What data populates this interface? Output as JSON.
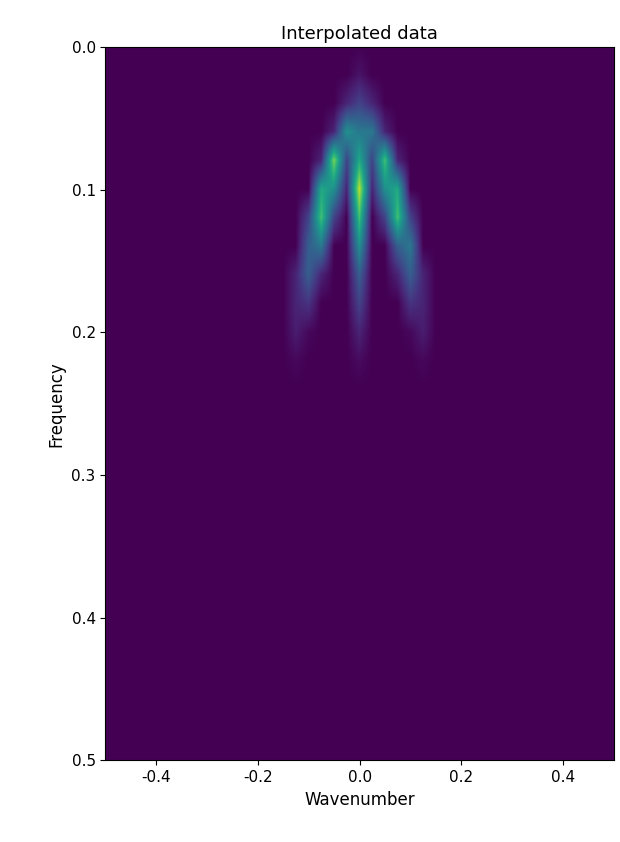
{
  "chart_data": {
    "type": "heatmap",
    "title": "Interpolated data",
    "x_label": "Wavenumber",
    "y_label": "Frequency",
    "x": [
      -0.5,
      -0.475,
      -0.45,
      -0.425,
      -0.4,
      -0.375,
      -0.35,
      -0.325,
      -0.3,
      -0.275,
      -0.25,
      -0.225,
      -0.2,
      -0.175,
      -0.15,
      -0.125,
      -0.1,
      -0.075,
      -0.05,
      -0.025,
      0,
      0.025,
      0.05,
      0.075,
      0.1,
      0.125,
      0.15,
      0.175,
      0.2,
      0.225,
      0.25,
      0.275,
      0.3,
      0.325,
      0.35,
      0.375,
      0.4,
      0.425,
      0.45,
      0.475,
      0.5
    ],
    "y": [
      0,
      0.02,
      0.04,
      0.06,
      0.08,
      0.1,
      0.12,
      0.14,
      0.16,
      0.18,
      0.2,
      0.22,
      0.24,
      0.26,
      0.28,
      0.3,
      0.32,
      0.34,
      0.36,
      0.38,
      0.4,
      0.42,
      0.44,
      0.46,
      0.48,
      0.5
    ],
    "cells": [
      [
        0,
        0,
        0,
        0,
        0,
        0,
        0,
        0,
        0,
        0,
        0,
        0,
        0,
        0,
        0,
        0,
        0,
        0,
        0,
        0,
        0,
        0,
        0,
        0,
        0,
        0,
        0,
        0,
        0,
        0,
        0,
        0,
        0,
        0,
        0,
        0,
        0,
        0,
        0,
        0,
        0
      ],
      [
        0,
        0,
        0,
        0,
        0,
        0,
        0,
        0,
        0,
        0,
        0,
        0,
        0,
        0,
        0,
        0,
        0,
        0,
        0,
        0,
        0.05,
        0,
        0,
        0,
        0,
        0,
        0,
        0,
        0,
        0,
        0,
        0,
        0,
        0,
        0,
        0,
        0,
        0,
        0,
        0,
        0
      ],
      [
        0,
        0,
        0,
        0,
        0,
        0,
        0,
        0,
        0,
        0,
        0,
        0,
        0,
        0,
        0,
        0,
        0,
        0,
        0,
        0.1,
        0.2,
        0.1,
        0,
        0,
        0,
        0,
        0,
        0,
        0,
        0,
        0,
        0,
        0,
        0,
        0,
        0,
        0,
        0,
        0,
        0,
        0
      ],
      [
        0,
        0,
        0,
        0,
        0,
        0,
        0,
        0,
        0,
        0,
        0,
        0,
        0,
        0,
        0,
        0,
        0,
        0,
        0.1,
        0.5,
        0.4,
        0.4,
        0.1,
        0,
        0,
        0,
        0,
        0,
        0,
        0,
        0,
        0,
        0,
        0,
        0,
        0,
        0,
        0,
        0,
        0,
        0
      ],
      [
        0,
        0,
        0,
        0,
        0,
        0,
        0,
        0,
        0,
        0,
        0,
        0,
        0,
        0,
        0,
        0,
        0,
        0.1,
        0.8,
        0.2,
        0.6,
        0.2,
        0.7,
        0.1,
        0,
        0,
        0,
        0,
        0,
        0,
        0,
        0,
        0,
        0,
        0,
        0,
        0,
        0,
        0,
        0,
        0
      ],
      [
        0,
        0,
        0,
        0,
        0,
        0,
        0,
        0,
        0,
        0,
        0,
        0,
        0,
        0,
        0,
        0,
        0,
        0.6,
        0.5,
        0.1,
        0.9,
        0.1,
        0.5,
        0.6,
        0,
        0,
        0,
        0,
        0,
        0,
        0,
        0,
        0,
        0,
        0,
        0,
        0,
        0,
        0,
        0,
        0
      ],
      [
        0,
        0,
        0,
        0,
        0,
        0,
        0,
        0,
        0,
        0,
        0,
        0,
        0,
        0,
        0,
        0,
        0.2,
        0.7,
        0.2,
        0,
        0.7,
        0,
        0.2,
        0.7,
        0.2,
        0,
        0,
        0,
        0,
        0,
        0,
        0,
        0,
        0,
        0,
        0,
        0,
        0,
        0,
        0,
        0
      ],
      [
        0,
        0,
        0,
        0,
        0,
        0,
        0,
        0,
        0,
        0,
        0,
        0,
        0,
        0,
        0,
        0,
        0.3,
        0.4,
        0,
        0,
        0.5,
        0,
        0,
        0.3,
        0.4,
        0,
        0,
        0,
        0,
        0,
        0,
        0,
        0,
        0,
        0,
        0,
        0,
        0,
        0,
        0,
        0
      ],
      [
        0,
        0,
        0,
        0,
        0,
        0,
        0,
        0,
        0,
        0,
        0,
        0,
        0,
        0,
        0,
        0.1,
        0.3,
        0.1,
        0,
        0,
        0.3,
        0,
        0,
        0.1,
        0.3,
        0.1,
        0,
        0,
        0,
        0,
        0,
        0,
        0,
        0,
        0,
        0,
        0,
        0,
        0,
        0,
        0
      ],
      [
        0,
        0,
        0,
        0,
        0,
        0,
        0,
        0,
        0,
        0,
        0,
        0,
        0,
        0,
        0,
        0.1,
        0.15,
        0,
        0,
        0,
        0.2,
        0,
        0,
        0,
        0.15,
        0.1,
        0,
        0,
        0,
        0,
        0,
        0,
        0,
        0,
        0,
        0,
        0,
        0,
        0,
        0,
        0
      ],
      [
        0,
        0,
        0,
        0,
        0,
        0,
        0,
        0,
        0,
        0,
        0,
        0,
        0,
        0,
        0,
        0.08,
        0.02,
        0,
        0,
        0,
        0.1,
        0,
        0,
        0,
        0.02,
        0.08,
        0,
        0,
        0,
        0,
        0,
        0,
        0,
        0,
        0,
        0,
        0,
        0,
        0,
        0,
        0
      ],
      [
        0,
        0,
        0,
        0,
        0,
        0,
        0,
        0,
        0,
        0,
        0,
        0,
        0,
        0,
        0,
        0.02,
        0,
        0,
        0,
        0,
        0.03,
        0,
        0,
        0,
        0,
        0.02,
        0,
        0,
        0,
        0,
        0,
        0,
        0,
        0,
        0,
        0,
        0,
        0,
        0,
        0,
        0
      ],
      [
        0,
        0,
        0,
        0,
        0,
        0,
        0,
        0,
        0,
        0,
        0,
        0,
        0,
        0,
        0,
        0,
        0,
        0,
        0,
        0,
        0,
        0,
        0,
        0,
        0,
        0,
        0,
        0,
        0,
        0,
        0,
        0,
        0,
        0,
        0,
        0,
        0,
        0,
        0,
        0,
        0
      ],
      [
        0,
        0,
        0,
        0,
        0,
        0,
        0,
        0,
        0,
        0,
        0,
        0,
        0,
        0,
        0,
        0,
        0,
        0,
        0,
        0,
        0,
        0,
        0,
        0,
        0,
        0,
        0,
        0,
        0,
        0,
        0,
        0,
        0,
        0,
        0,
        0,
        0,
        0,
        0,
        0,
        0
      ],
      [
        0,
        0,
        0,
        0,
        0,
        0,
        0,
        0,
        0,
        0,
        0,
        0,
        0,
        0,
        0,
        0,
        0,
        0,
        0,
        0,
        0,
        0,
        0,
        0,
        0,
        0,
        0,
        0,
        0,
        0,
        0,
        0,
        0,
        0,
        0,
        0,
        0,
        0,
        0,
        0,
        0
      ],
      [
        0,
        0,
        0,
        0,
        0,
        0,
        0,
        0,
        0,
        0,
        0,
        0,
        0,
        0,
        0,
        0,
        0,
        0,
        0,
        0,
        0,
        0,
        0,
        0,
        0,
        0,
        0,
        0,
        0,
        0,
        0,
        0,
        0,
        0,
        0,
        0,
        0,
        0,
        0,
        0,
        0
      ],
      [
        0,
        0,
        0,
        0,
        0,
        0,
        0,
        0,
        0,
        0,
        0,
        0,
        0,
        0,
        0,
        0,
        0,
        0,
        0,
        0,
        0,
        0,
        0,
        0,
        0,
        0,
        0,
        0,
        0,
        0,
        0,
        0,
        0,
        0,
        0,
        0,
        0,
        0,
        0,
        0,
        0
      ],
      [
        0,
        0,
        0,
        0,
        0,
        0,
        0,
        0,
        0,
        0,
        0,
        0,
        0,
        0,
        0,
        0,
        0,
        0,
        0,
        0,
        0,
        0,
        0,
        0,
        0,
        0,
        0,
        0,
        0,
        0,
        0,
        0,
        0,
        0,
        0,
        0,
        0,
        0,
        0,
        0,
        0
      ],
      [
        0,
        0,
        0,
        0,
        0,
        0,
        0,
        0,
        0,
        0,
        0,
        0,
        0,
        0,
        0,
        0,
        0,
        0,
        0,
        0,
        0,
        0,
        0,
        0,
        0,
        0,
        0,
        0,
        0,
        0,
        0,
        0,
        0,
        0,
        0,
        0,
        0,
        0,
        0,
        0,
        0
      ],
      [
        0,
        0,
        0,
        0,
        0,
        0,
        0,
        0,
        0,
        0,
        0,
        0,
        0,
        0,
        0,
        0,
        0,
        0,
        0,
        0,
        0,
        0,
        0,
        0,
        0,
        0,
        0,
        0,
        0,
        0,
        0,
        0,
        0,
        0,
        0,
        0,
        0,
        0,
        0,
        0,
        0
      ],
      [
        0,
        0,
        0,
        0,
        0,
        0,
        0,
        0,
        0,
        0,
        0,
        0,
        0,
        0,
        0,
        0,
        0,
        0,
        0,
        0,
        0,
        0,
        0,
        0,
        0,
        0,
        0,
        0,
        0,
        0,
        0,
        0,
        0,
        0,
        0,
        0,
        0,
        0,
        0,
        0,
        0
      ],
      [
        0,
        0,
        0,
        0,
        0,
        0,
        0,
        0,
        0,
        0,
        0,
        0,
        0,
        0,
        0,
        0,
        0,
        0,
        0,
        0,
        0,
        0,
        0,
        0,
        0,
        0,
        0,
        0,
        0,
        0,
        0,
        0,
        0,
        0,
        0,
        0,
        0,
        0,
        0,
        0,
        0
      ],
      [
        0,
        0,
        0,
        0,
        0,
        0,
        0,
        0,
        0,
        0,
        0,
        0,
        0,
        0,
        0,
        0,
        0,
        0,
        0,
        0,
        0,
        0,
        0,
        0,
        0,
        0,
        0,
        0,
        0,
        0,
        0,
        0,
        0,
        0,
        0,
        0,
        0,
        0,
        0,
        0,
        0
      ],
      [
        0,
        0,
        0,
        0,
        0,
        0,
        0,
        0,
        0,
        0,
        0,
        0,
        0,
        0,
        0,
        0,
        0,
        0,
        0,
        0,
        0,
        0,
        0,
        0,
        0,
        0,
        0,
        0,
        0,
        0,
        0,
        0,
        0,
        0,
        0,
        0,
        0,
        0,
        0,
        0,
        0
      ],
      [
        0,
        0,
        0,
        0,
        0,
        0,
        0,
        0,
        0,
        0,
        0,
        0,
        0,
        0,
        0,
        0,
        0,
        0,
        0,
        0,
        0,
        0,
        0,
        0,
        0,
        0,
        0,
        0,
        0,
        0,
        0,
        0,
        0,
        0,
        0,
        0,
        0,
        0,
        0,
        0,
        0
      ],
      [
        0,
        0,
        0,
        0,
        0,
        0,
        0,
        0,
        0,
        0,
        0,
        0,
        0,
        0,
        0,
        0,
        0,
        0,
        0,
        0,
        0,
        0,
        0,
        0,
        0,
        0,
        0,
        0,
        0,
        0,
        0,
        0,
        0,
        0,
        0,
        0,
        0,
        0,
        0,
        0,
        0
      ]
    ],
    "color_range": [
      0,
      1
    ],
    "xlim": [
      -0.5,
      0.5
    ],
    "ylim": [
      0.5,
      0
    ],
    "xticks": [
      -0.4,
      -0.2,
      {
        "value": 0,
        "label": "0.0"
      },
      0.2,
      0.4
    ],
    "yticks": [
      {
        "value": 0,
        "label": "0.0"
      },
      0.1,
      0.2,
      0.3,
      0.4,
      0.5
    ]
  }
}
